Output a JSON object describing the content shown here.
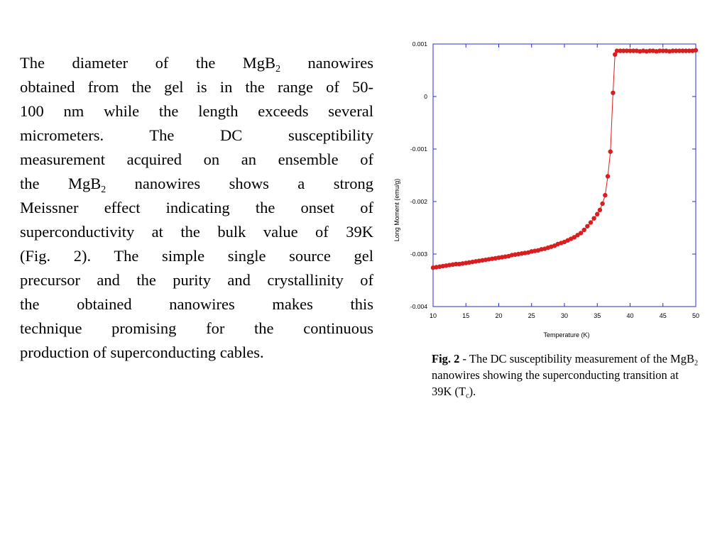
{
  "paragraph": {
    "lines": [
      [
        "The diameter of the MgB",
        "2",
        " nanowires"
      ],
      [
        "obtained from the gel is in the range of 50-"
      ],
      [
        "100 nm while the length exceeds several"
      ],
      [
        "micrometers. The DC susceptibility"
      ],
      [
        "measurement acquired on an ensemble of"
      ],
      [
        "the MgB",
        "2",
        " nanowires shows a strong"
      ],
      [
        "Meissner effect indicating the onset of"
      ],
      [
        "superconductivity at the bulk value of 39K"
      ],
      [
        "(Fig. 2).   The simple single source gel"
      ],
      [
        "precursor and the purity and crystallinity of"
      ],
      [
        "the obtained nanowires makes this"
      ],
      [
        "technique promising for the continuous"
      ],
      [
        "production of superconducting cables."
      ]
    ]
  },
  "caption": {
    "label": "Fig. 2",
    "text_1": " - The DC susceptibility measurement of the MgB",
    "sub_1": "2",
    "text_2": " nanowires showing the superconducting transition at 39K (T",
    "sub_2": "c",
    "text_3": ")."
  },
  "chart_data": {
    "type": "scatter",
    "xlabel": "Temperature (K)",
    "ylabel": "Long Moment (emu/g)",
    "xlim": [
      10,
      50
    ],
    "ylim": [
      -0.004,
      0.001
    ],
    "xticks": [
      10,
      15,
      20,
      25,
      30,
      35,
      40,
      45,
      50
    ],
    "yticks": [
      0.001,
      0,
      -0.001,
      -0.002,
      -0.003,
      -0.004
    ],
    "ytick_labels": [
      "0.001",
      "0",
      "-0.001",
      "-0.002",
      "-0.003",
      "-0.004"
    ],
    "grid": false,
    "marker_color": "#d81e1e",
    "line_color": "#d81e1e",
    "frame_color": "#2b2bd6",
    "series": [
      {
        "x": [
          10,
          10.5,
          11,
          11.5,
          12,
          12.5,
          13,
          13.5,
          14,
          14.5,
          15,
          15.5,
          16,
          16.5,
          17,
          17.5,
          18,
          18.5,
          19,
          19.5,
          20,
          20.5,
          21,
          21.5,
          22,
          22.5,
          23,
          23.5,
          24,
          24.5,
          25,
          25.5,
          26,
          26.5,
          27,
          27.5,
          28,
          28.5,
          29,
          29.5,
          30,
          30.5,
          31,
          31.5,
          32,
          32.5,
          33,
          33.5,
          34,
          34.5,
          35,
          35.4,
          35.8,
          36.2,
          36.6,
          37,
          37.4,
          37.7,
          38,
          38.5,
          39,
          39.5,
          40,
          40.5,
          41,
          41.5,
          42,
          42.5,
          43,
          43.5,
          44,
          44.5,
          45,
          45.5,
          46,
          46.5,
          47,
          47.5,
          48,
          48.5,
          49,
          49.5,
          50
        ],
        "y": [
          -0.00326,
          -0.00325,
          -0.00324,
          -0.00323,
          -0.00322,
          -0.00321,
          -0.0032,
          -0.00319,
          -0.00319,
          -0.00318,
          -0.00317,
          -0.00316,
          -0.00315,
          -0.00314,
          -0.00313,
          -0.00312,
          -0.00311,
          -0.0031,
          -0.00309,
          -0.00308,
          -0.00307,
          -0.00306,
          -0.00305,
          -0.00304,
          -0.00302,
          -0.00301,
          -0.003,
          -0.00299,
          -0.00298,
          -0.00297,
          -0.00295,
          -0.00294,
          -0.00293,
          -0.00291,
          -0.0029,
          -0.00288,
          -0.00286,
          -0.00284,
          -0.00281,
          -0.00279,
          -0.00277,
          -0.00274,
          -0.00271,
          -0.00268,
          -0.00264,
          -0.0026,
          -0.00254,
          -0.00247,
          -0.0024,
          -0.00232,
          -0.00224,
          -0.00216,
          -0.00204,
          -0.00188,
          -0.00152,
          -0.00105,
          7e-05,
          0.0008,
          0.00087,
          0.00087,
          0.00087,
          0.00087,
          0.00087,
          0.00087,
          0.00087,
          0.00086,
          0.00087,
          0.00086,
          0.00087,
          0.00087,
          0.00086,
          0.00087,
          0.00087,
          0.00087,
          0.00086,
          0.00087,
          0.00087,
          0.00087,
          0.00087,
          0.00087,
          0.00087,
          0.00087,
          0.00088
        ]
      }
    ]
  }
}
